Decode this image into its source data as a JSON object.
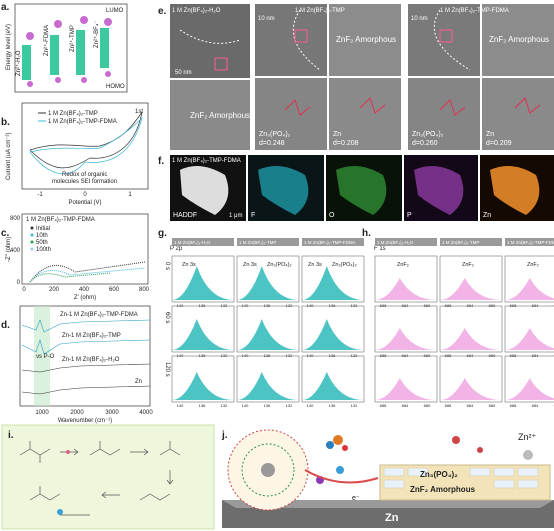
{
  "a": {
    "label": "a.",
    "y_axis": "Energy level (eV)",
    "lumo": "LUMO",
    "homo": "HOMO",
    "species": [
      "Zn²⁺-H₂O",
      "Zn²⁺-FDMA",
      "Zn²⁺-TMP",
      "Zn²⁺-BF₄⁻"
    ]
  },
  "b": {
    "label": "b.",
    "legend": [
      "1 M Zn(BF₄)₂-TMP",
      "1 M Zn(BF₄)₂-TMP-FDMA"
    ],
    "cycle": "1st",
    "annotation": [
      "Redox of organic",
      "molecules SEI formation"
    ],
    "x_axis": "Potential (V)",
    "y_axis": "Current (uA cm⁻²)",
    "xticks": [
      -1,
      0,
      1
    ]
  },
  "c": {
    "label": "c.",
    "title": "1 M Zn(BF₄)₂-TMP-FDMA",
    "legend": [
      "Initial",
      "10th",
      "50th",
      "100th"
    ],
    "x_axis": "Z' (ohm)",
    "y_axis": "-Z'' (ohm)",
    "xticks": [
      0,
      200,
      400,
      600,
      800
    ],
    "yticks": [
      0,
      400,
      800
    ]
  },
  "d": {
    "label": "d.",
    "traces": [
      "Zn-1 M Zn(BF₄)₂-TMP-FDMA",
      "Zn-1 M Zn(BF₄)₂-TMP",
      "Zn-1 M Zn(BF₄)₂-H₂O",
      "Zn"
    ],
    "peak": "νs P-O",
    "x_axis": "Wavenumber (cm⁻¹)",
    "xticks": [
      1000,
      2000,
      3000,
      4000
    ]
  },
  "e": {
    "label": "e.",
    "columns": [
      "1 M Zn(BF₄)₂-H₂O",
      "1 M Zn(BF₄)₂-TMP",
      "1 M Zn(BF₄)₂-TMP-FDMA"
    ],
    "amorphous": [
      "ZnF₂ Amorphous",
      "ZnF₂ Amorphous",
      "ZnF₂ Amorphous"
    ],
    "phases": [
      {
        "phase": "Zn₃(PO₄)₂",
        "spacing": "d=0.248"
      },
      {
        "phase": "Zn",
        "spacing": "d=0.208"
      },
      {
        "phase": "Zn₃(PO₄)₂",
        "spacing": "d=0.260"
      },
      {
        "phase": "Zn",
        "spacing": "d=0.209"
      }
    ],
    "scale_bars": [
      "50 nm",
      "10 nm",
      "10 nm"
    ]
  },
  "f": {
    "label": "f.",
    "title": "1 M Zn(BF₄)₂-TMP-FDMA",
    "maps": [
      "HADDF",
      "F",
      "O",
      "P",
      "Zn"
    ],
    "scale_bar": "1 μm"
  },
  "g": {
    "label": "g.",
    "element": "P 2p",
    "columns": [
      "1 M Zn(BF₄)₂-H₂O",
      "1 M Zn(BF₄)₂-TMP",
      "1 M Zn(BF₄)₂-TMP-FDMA"
    ],
    "rows": [
      "0 s",
      "60 s",
      "120 s"
    ],
    "peaks": [
      "Zn 3s",
      "Zn 3s",
      "Zn₃(PO₄)₂",
      "Zn 3s",
      "Zn₃(PO₄)₂"
    ],
    "xticks": [
      140,
      136,
      132
    ]
  },
  "h": {
    "label": "h.",
    "element": "F 1s",
    "columns": [
      "1 M Zn(BF₄)₂-H₂O",
      "1 M Zn(BF₄)₂-TMP",
      "1 M Zn(BF₄)₂-TMP-FDMA"
    ],
    "peaks": [
      "ZnF₂",
      "ZnF₂",
      "ZnF₂"
    ],
    "xticks": [
      688,
      684,
      680
    ]
  },
  "i": {
    "label": "i."
  },
  "j": {
    "label": "j.",
    "anode": "Zn",
    "layer1": "Zn₃(PO₄)₂",
    "layer2": "ZnF₂  Amorphous",
    "ion": "Zn²⁺",
    "electron": "e⁻"
  }
}
